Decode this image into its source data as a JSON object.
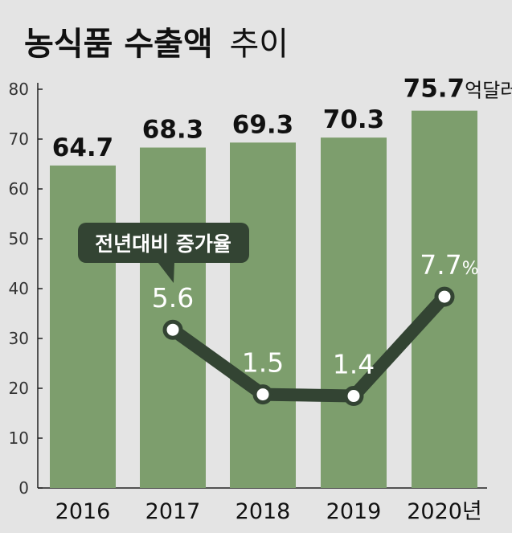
{
  "title_bold": "농식품 수출액",
  "title_light": "추이",
  "chart_data": {
    "type": "bar",
    "categories": [
      "2016",
      "2017",
      "2018",
      "2019",
      "2020년"
    ],
    "values": [
      64.7,
      68.3,
      69.3,
      70.3,
      75.7
    ],
    "value_labels": [
      "64.7",
      "68.3",
      "69.3",
      "70.3",
      "75.7"
    ],
    "last_value_unit": "억달러",
    "ylim": [
      0,
      80
    ],
    "yticks": [
      "0",
      "10",
      "20",
      "30",
      "40",
      "50",
      "60",
      "70",
      "80"
    ],
    "grid": false,
    "growth_series": {
      "type": "line",
      "callout": "전년대비 증가율",
      "x": [
        "2017",
        "2018",
        "2019",
        "2020년"
      ],
      "values": [
        5.6,
        1.5,
        1.4,
        7.7
      ],
      "value_labels": [
        "5.6",
        "1.5",
        "1.4",
        "7.7"
      ],
      "last_unit": "%"
    },
    "colors": {
      "bar": "#7d9e6d",
      "line": "#334433",
      "background": "#e4e4e4",
      "text": "#111111"
    }
  }
}
